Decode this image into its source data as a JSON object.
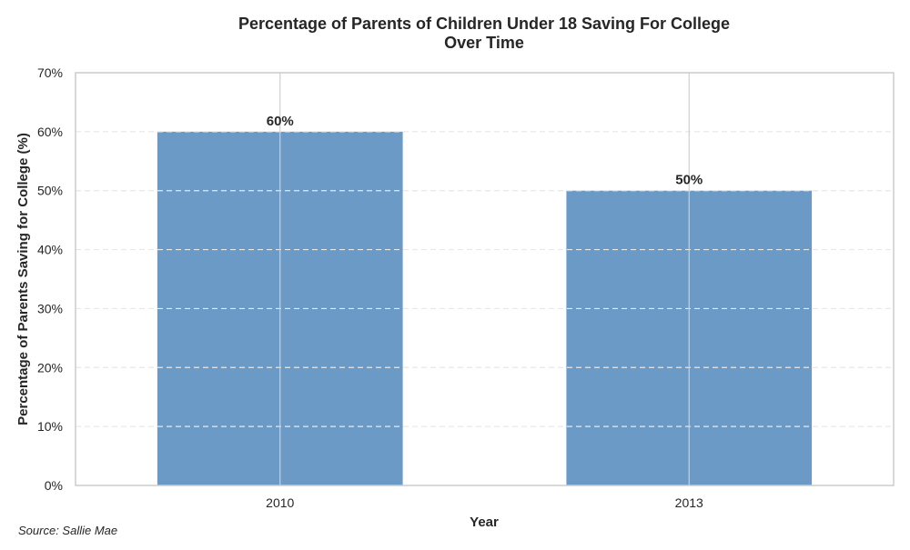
{
  "chart_data": {
    "type": "bar",
    "title_lines": [
      "Percentage of Parents of Children Under 18 Saving For College",
      "Over Time"
    ],
    "xlabel": "Year",
    "ylabel": "Percentage of Parents Saving for College (%)",
    "categories": [
      "2010",
      "2013"
    ],
    "values": [
      60,
      50
    ],
    "value_labels": [
      "60%",
      "50%"
    ],
    "ylim": [
      0,
      70
    ],
    "yticks": [
      0,
      10,
      20,
      30,
      40,
      50,
      60,
      70
    ],
    "ytick_labels": [
      "0%",
      "10%",
      "20%",
      "30%",
      "40%",
      "50%",
      "60%",
      "70%"
    ],
    "grid": true,
    "bar_color": "#4a84ba",
    "source": "Source: Sallie Mae"
  }
}
